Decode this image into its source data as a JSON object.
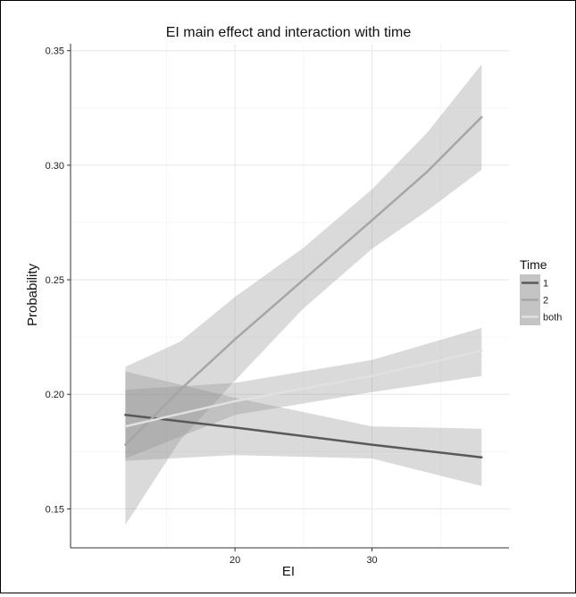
{
  "chart_data": {
    "type": "line",
    "title": "EI main effect and interaction with time",
    "xlabel": "EI",
    "ylabel": "Probability",
    "xlim": [
      8,
      40
    ],
    "ylim": [
      0.133,
      0.353
    ],
    "x_ticks": [
      20,
      30
    ],
    "y_ticks": [
      0.15,
      0.2,
      0.25,
      0.3,
      0.35
    ],
    "x_tick_labels": [
      "20",
      "30"
    ],
    "y_tick_labels": [
      "0.15",
      "0.20",
      "0.25",
      "0.30",
      "0.35"
    ],
    "grid": true,
    "legend": {
      "title": "Time",
      "placement": "right",
      "entries": [
        "1",
        "2",
        "both"
      ]
    },
    "series": [
      {
        "name": "1",
        "color": "#595959",
        "x": [
          12,
          20,
          30,
          38
        ],
        "y": [
          0.191,
          0.1855,
          0.178,
          0.1725
        ],
        "lower": [
          0.171,
          0.1735,
          0.172,
          0.16
        ],
        "upper": [
          0.21,
          0.1985,
          0.186,
          0.185
        ]
      },
      {
        "name": "2",
        "color": "#a6a6a6",
        "x": [
          12,
          16,
          20,
          25,
          30,
          34,
          38
        ],
        "y": [
          0.178,
          0.202,
          0.224,
          0.25,
          0.276,
          0.297,
          0.321
        ],
        "lower": [
          0.143,
          0.18,
          0.206,
          0.2375,
          0.2635,
          0.28,
          0.298
        ],
        "upper": [
          0.212,
          0.223,
          0.2425,
          0.264,
          0.2895,
          0.314,
          0.344
        ]
      },
      {
        "name": "both",
        "color": "#e0e0e0",
        "x": [
          12,
          20,
          30,
          38
        ],
        "y": [
          0.186,
          0.197,
          0.208,
          0.219
        ],
        "lower": [
          0.172,
          0.191,
          0.201,
          0.208
        ],
        "upper": [
          0.202,
          0.205,
          0.215,
          0.229
        ]
      }
    ]
  }
}
